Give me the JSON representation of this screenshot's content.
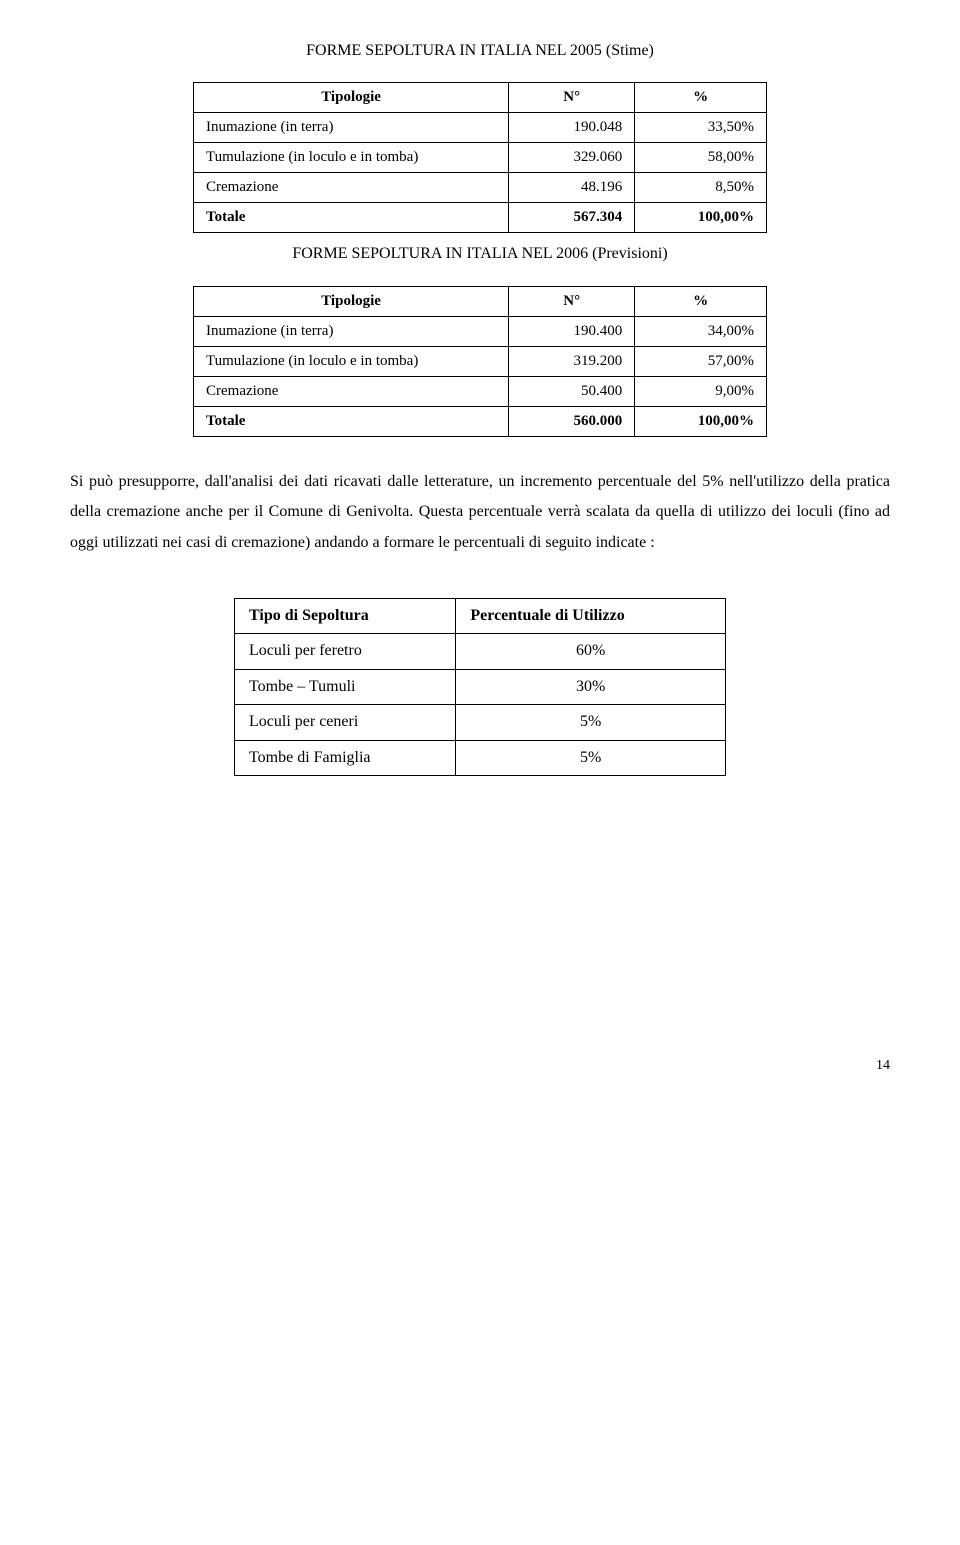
{
  "title1": "FORME SEPOLTURA IN ITALIA NEL 2005 (Stime)",
  "table1": {
    "head": {
      "c1": "Tipologie",
      "c2": "N°",
      "c3": "%"
    },
    "rows": [
      {
        "label": "Inumazione (in terra)",
        "n": "190.048",
        "pct": "33,50%"
      },
      {
        "label": "Tumulazione (in loculo e in tomba)",
        "n": "329.060",
        "pct": "58,00%"
      },
      {
        "label": "Cremazione",
        "n": "48.196",
        "pct": "8,50%"
      }
    ],
    "total": {
      "label": "Totale",
      "n": "567.304",
      "pct": "100,00%"
    }
  },
  "title2": "FORME SEPOLTURA IN ITALIA NEL 2006 (Previsioni)",
  "table2": {
    "head": {
      "c1": "Tipologie",
      "c2": "N°",
      "c3": "%"
    },
    "rows": [
      {
        "label": "Inumazione (in terra)",
        "n": "190.400",
        "pct": "34,00%"
      },
      {
        "label": "Tumulazione (in loculo e in tomba)",
        "n": "319.200",
        "pct": "57,00%"
      },
      {
        "label": "Cremazione",
        "n": "50.400",
        "pct": "9,00%"
      }
    ],
    "total": {
      "label": "Totale",
      "n": "560.000",
      "pct": "100,00%"
    }
  },
  "paragraph": "Si può presupporre, dall'analisi dei dati ricavati dalle letterature, un incremento percentuale del 5% nell'utilizzo della pratica della cremazione anche per il Comune di Genivolta. Questa percentuale verrà scalata da quella di utilizzo dei loculi (fino ad oggi utilizzati nei casi di cremazione) andando a formare le percentuali di seguito indicate :",
  "table3": {
    "head": {
      "c1": "Tipo di Sepoltura",
      "c2": "Percentuale di Utilizzo"
    },
    "rows": [
      {
        "label": "Loculi per feretro",
        "pct": "60%"
      },
      {
        "label": "Tombe – Tumuli",
        "pct": "30%"
      },
      {
        "label": "Loculi per ceneri",
        "pct": "5%"
      },
      {
        "label": "Tombe di Famiglia",
        "pct": "5%"
      }
    ]
  },
  "page_number": "14"
}
